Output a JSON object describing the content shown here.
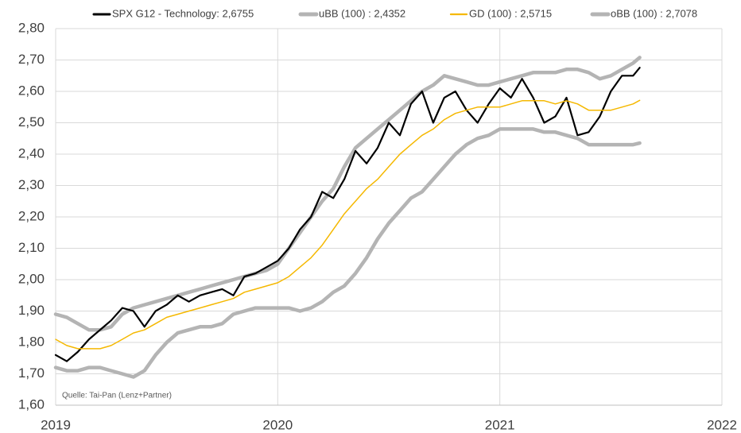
{
  "chart_data": {
    "type": "line",
    "source": "Quelle: Tai-Pan (Lenz+Partner)",
    "x": [
      2019.0,
      2019.05,
      2019.1,
      2019.15,
      2019.2,
      2019.25,
      2019.3,
      2019.35,
      2019.4,
      2019.45,
      2019.5,
      2019.55,
      2019.6,
      2019.65,
      2019.7,
      2019.75,
      2019.8,
      2019.85,
      2019.9,
      2019.95,
      2020.0,
      2020.05,
      2020.1,
      2020.15,
      2020.2,
      2020.25,
      2020.3,
      2020.35,
      2020.4,
      2020.45,
      2020.5,
      2020.55,
      2020.6,
      2020.65,
      2020.7,
      2020.75,
      2020.8,
      2020.85,
      2020.9,
      2020.95,
      2021.0,
      2021.05,
      2021.1,
      2021.15,
      2021.2,
      2021.25,
      2021.3,
      2021.35,
      2021.4,
      2021.45,
      2021.5,
      2021.55,
      2021.6,
      2021.63
    ],
    "series": [
      {
        "name": "SPX G12 - Technology: 2,6755",
        "color": "#000000",
        "width": 2.2,
        "values": [
          1.76,
          1.74,
          1.77,
          1.81,
          1.84,
          1.87,
          1.91,
          1.9,
          1.85,
          1.9,
          1.92,
          1.95,
          1.93,
          1.95,
          1.96,
          1.97,
          1.95,
          2.01,
          2.02,
          2.04,
          2.06,
          2.1,
          2.16,
          2.2,
          2.28,
          2.26,
          2.32,
          2.41,
          2.37,
          2.42,
          2.5,
          2.46,
          2.56,
          2.6,
          2.5,
          2.58,
          2.6,
          2.54,
          2.5,
          2.56,
          2.61,
          2.58,
          2.64,
          2.58,
          2.5,
          2.52,
          2.58,
          2.46,
          2.47,
          2.52,
          2.6,
          2.65,
          2.65,
          2.6755
        ]
      },
      {
        "name": "uBB (100) : 2,4352",
        "color": "#b4b4b4",
        "width": 4.5,
        "values": [
          1.72,
          1.71,
          1.71,
          1.72,
          1.72,
          1.71,
          1.7,
          1.69,
          1.71,
          1.76,
          1.8,
          1.83,
          1.84,
          1.85,
          1.85,
          1.86,
          1.89,
          1.9,
          1.91,
          1.91,
          1.91,
          1.91,
          1.9,
          1.91,
          1.93,
          1.96,
          1.98,
          2.02,
          2.07,
          2.13,
          2.18,
          2.22,
          2.26,
          2.28,
          2.32,
          2.36,
          2.4,
          2.43,
          2.45,
          2.46,
          2.48,
          2.48,
          2.48,
          2.48,
          2.47,
          2.47,
          2.46,
          2.45,
          2.43,
          2.43,
          2.43,
          2.43,
          2.43,
          2.4352
        ]
      },
      {
        "name": "GD (100) : 2,5715",
        "color": "#f5b800",
        "width": 1.5,
        "values": [
          1.81,
          1.79,
          1.78,
          1.78,
          1.78,
          1.79,
          1.81,
          1.83,
          1.84,
          1.86,
          1.88,
          1.89,
          1.9,
          1.91,
          1.92,
          1.93,
          1.94,
          1.96,
          1.97,
          1.98,
          1.99,
          2.01,
          2.04,
          2.07,
          2.11,
          2.16,
          2.21,
          2.25,
          2.29,
          2.32,
          2.36,
          2.4,
          2.43,
          2.46,
          2.48,
          2.51,
          2.53,
          2.54,
          2.55,
          2.55,
          2.55,
          2.56,
          2.57,
          2.57,
          2.57,
          2.56,
          2.57,
          2.56,
          2.54,
          2.54,
          2.54,
          2.55,
          2.56,
          2.5715
        ]
      },
      {
        "name": "oBB (100) : 2,7078",
        "color": "#b4b4b4",
        "width": 4.5,
        "values": [
          1.89,
          1.88,
          1.86,
          1.84,
          1.84,
          1.85,
          1.89,
          1.91,
          1.92,
          1.93,
          1.94,
          1.95,
          1.96,
          1.97,
          1.98,
          1.99,
          2.0,
          2.01,
          2.02,
          2.03,
          2.05,
          2.1,
          2.15,
          2.2,
          2.25,
          2.29,
          2.36,
          2.42,
          2.45,
          2.48,
          2.51,
          2.54,
          2.57,
          2.6,
          2.62,
          2.65,
          2.64,
          2.63,
          2.62,
          2.62,
          2.63,
          2.64,
          2.65,
          2.66,
          2.66,
          2.66,
          2.67,
          2.67,
          2.66,
          2.64,
          2.65,
          2.67,
          2.69,
          2.7078
        ]
      }
    ],
    "xlim": [
      2019,
      2022
    ],
    "xticks": [
      2019,
      2020,
      2021,
      2022
    ],
    "ylim": [
      1.6,
      2.8
    ],
    "yticks": [
      {
        "value": 1.6,
        "label": "1,60"
      },
      {
        "value": 1.7,
        "label": "1,70"
      },
      {
        "value": 1.8,
        "label": "1,80"
      },
      {
        "value": 1.9,
        "label": "1,90"
      },
      {
        "value": 2.0,
        "label": "2,00"
      },
      {
        "value": 2.1,
        "label": "2,10"
      },
      {
        "value": 2.2,
        "label": "2,20"
      },
      {
        "value": 2.3,
        "label": "2,30"
      },
      {
        "value": 2.4,
        "label": "2,40"
      },
      {
        "value": 2.5,
        "label": "2,50"
      },
      {
        "value": 2.6,
        "label": "2,60"
      },
      {
        "value": 2.7,
        "label": "2,70"
      },
      {
        "value": 2.8,
        "label": "2,80"
      }
    ],
    "grid": true,
    "legend": "top"
  }
}
